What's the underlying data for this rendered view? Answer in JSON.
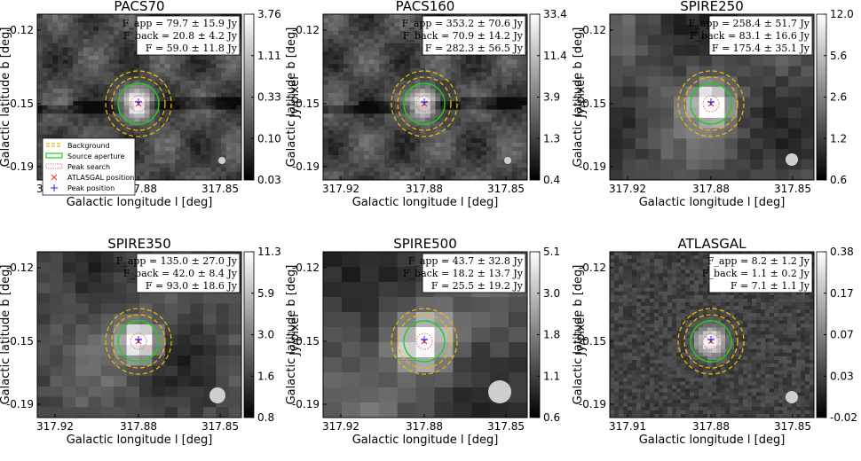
{
  "figure": {
    "ylabel": "Galactic latitude b [deg]",
    "xlabel": "Galactic longitude l [deg]",
    "cbar_label": "Jy/pixel"
  },
  "legend": {
    "items": [
      {
        "label": "Background",
        "style": "dashed",
        "color": "#e6b800"
      },
      {
        "label": "Source aperture",
        "style": "solid",
        "color": "#22cc22"
      },
      {
        "label": "Peak search",
        "style": "dotted",
        "color": "#e07070"
      },
      {
        "label": "ATLASGAL position",
        "style": "x-marker",
        "color": "#ff2020"
      },
      {
        "label": "Peak position",
        "style": "plus-marker",
        "color": "#2020ff"
      }
    ]
  },
  "chart_data": [
    {
      "type": "heatmap",
      "title": "PACS70",
      "xlabel": "Galactic longitude l [deg]",
      "ylabel": "Galactic latitude b [deg]",
      "x_ticks": [
        "317.92",
        "317.88",
        "317.85"
      ],
      "y_ticks": [
        "-0.12",
        "-0.15",
        "-0.19"
      ],
      "colorbar": {
        "label": "Jy/pixel",
        "scale": "log",
        "ticks": [
          "3.76",
          "1.11",
          "0.33",
          "0.10",
          "0.03"
        ]
      },
      "flux": [
        "F_app = 79.7 ± 15.9 Jy",
        "F_back = 20.8 ± 4.2 Jy",
        "F = 59.0 ± 11.8 Jy"
      ],
      "beam": "small",
      "show_legend": true,
      "noise": "smooth",
      "filament": true
    },
    {
      "type": "heatmap",
      "title": "PACS160",
      "xlabel": "Galactic longitude l [deg]",
      "ylabel": "Galactic latitude b [deg]",
      "x_ticks": [
        "317.92",
        "317.88",
        "317.85"
      ],
      "y_ticks": [
        "-0.12",
        "-0.15",
        "-0.19"
      ],
      "colorbar": {
        "label": "Jy/pixel",
        "scale": "log",
        "ticks": [
          "33.4",
          "11.4",
          "3.9",
          "1.3",
          "0.4"
        ]
      },
      "flux": [
        "F_app = 353.2 ± 70.6 Jy",
        "F_back = 70.9 ± 14.2 Jy",
        "F = 282.3 ± 56.5 Jy"
      ],
      "beam": "small",
      "show_legend": false,
      "noise": "smooth",
      "filament": true
    },
    {
      "type": "heatmap",
      "title": "SPIRE250",
      "xlabel": "Galactic longitude l [deg]",
      "ylabel": "Galactic latitude b [deg]",
      "x_ticks": [
        "317.92",
        "317.88",
        "317.85"
      ],
      "y_ticks": [
        "-0.12",
        "-0.15",
        "-0.19"
      ],
      "colorbar": {
        "label": "Jy/pixel",
        "scale": "log",
        "ticks": [
          "12.0",
          "5.6",
          "2.6",
          "1.2",
          "0.6"
        ]
      },
      "flux": [
        "F_app = 258.4 ± 51.7 Jy",
        "F_back = 83.1 ± 16.6 Jy",
        "F = 175.4 ± 35.1 Jy"
      ],
      "beam": "medium",
      "show_legend": false,
      "noise": "pixelated",
      "filament": false
    },
    {
      "type": "heatmap",
      "title": "SPIRE350",
      "xlabel": "Galactic longitude l [deg]",
      "ylabel": "Galactic latitude b [deg]",
      "x_ticks": [
        "317.92",
        "317.88",
        "317.85"
      ],
      "y_ticks": [
        "-0.12",
        "-0.15",
        "-0.19"
      ],
      "colorbar": {
        "label": "Jy/pixel",
        "scale": "log",
        "ticks": [
          "11.3",
          "5.9",
          "3.0",
          "1.6",
          "0.8"
        ]
      },
      "flux": [
        "F_app = 135.0 ± 27.0 Jy",
        "F_back = 42.0 ± 8.4 Jy",
        "F = 93.0 ± 18.6 Jy"
      ],
      "beam": "large",
      "show_legend": false,
      "noise": "pixelated",
      "filament": false
    },
    {
      "type": "heatmap",
      "title": "SPIRE500",
      "xlabel": "Galactic longitude l [deg]",
      "ylabel": "Galactic latitude b [deg]",
      "x_ticks": [
        "317.92",
        "317.88",
        "317.85"
      ],
      "y_ticks": [
        "-0.12",
        "-0.15",
        "-0.19"
      ],
      "colorbar": {
        "label": "Jy/pixel",
        "scale": "log",
        "ticks": [
          "5.1",
          "3.0",
          "1.8",
          "1.1",
          "0.6"
        ]
      },
      "flux": [
        "F_app = 43.7 ± 32.8 Jy",
        "F_back = 18.2 ± 13.7 Jy",
        "F = 25.5 ± 19.2 Jy"
      ],
      "beam": "xlarge",
      "show_legend": false,
      "noise": "coarse",
      "filament": false
    },
    {
      "type": "heatmap",
      "title": "ATLASGAL",
      "xlabel": "Galactic longitude l [deg]",
      "ylabel": "Galactic latitude b [deg]",
      "x_ticks": [
        "317.91",
        "317.88",
        "317.85"
      ],
      "y_ticks": [
        "-0.12",
        "-0.15",
        "-0.19"
      ],
      "colorbar": {
        "label": "Jy/pixel",
        "scale": "log",
        "ticks": [
          "0.38",
          "0.17",
          "0.07",
          "0.03",
          "-0.02"
        ]
      },
      "flux": [
        "F_app = 8.2 ± 1.2 Jy",
        "F_back = 1.1 ± 0.2 Jy",
        "F = 7.1 ± 1.1 Jy"
      ],
      "beam": "medium",
      "show_legend": false,
      "noise": "speckle",
      "filament": false
    }
  ]
}
